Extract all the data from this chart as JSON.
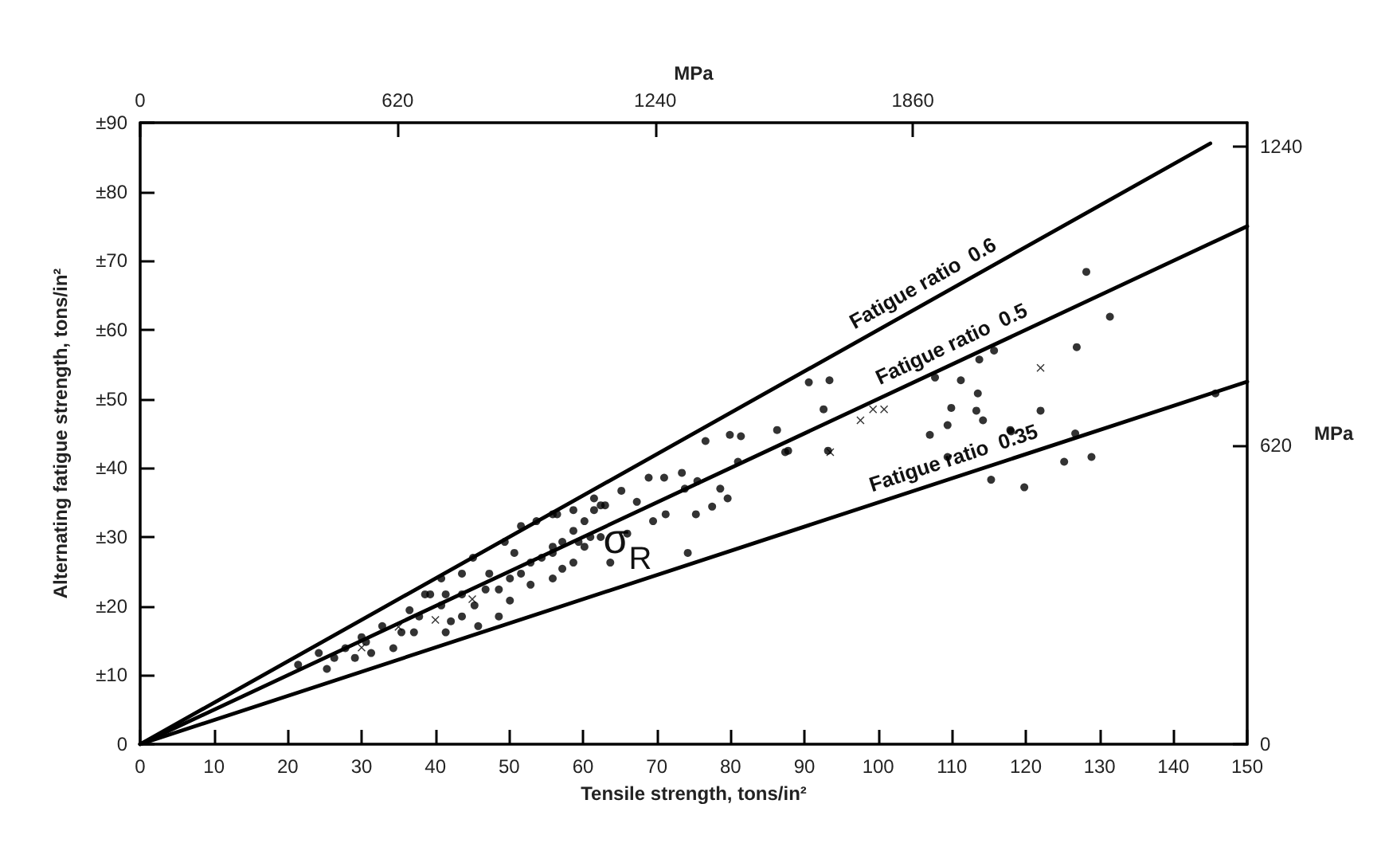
{
  "chart_data": {
    "type": "scatter",
    "xlabel": "Tensile strength, tons/in²",
    "ylabel": "Alternating fatigue strength, tons/in²",
    "x2label": "MPa",
    "y2label": "MPa",
    "xlim": [
      0,
      150
    ],
    "xticks": [
      0,
      10,
      20,
      30,
      40,
      50,
      60,
      70,
      80,
      90,
      100,
      110,
      120,
      130,
      140,
      150
    ],
    "ylim": [
      0,
      90
    ],
    "yticks": [
      0,
      {
        "value": 10,
        "label": "±10"
      },
      {
        "value": 20,
        "label": "±20"
      },
      {
        "value": 30,
        "label": "±30"
      },
      {
        "value": 40,
        "label": "±40"
      },
      {
        "value": 50,
        "label": "±50"
      },
      {
        "value": 60,
        "label": "±60"
      },
      {
        "value": 70,
        "label": "±70"
      },
      {
        "value": 80,
        "label": "±80"
      },
      {
        "value": 90,
        "label": "±90"
      }
    ],
    "x2lim": [
      0,
      2665
    ],
    "x2ticks": [
      0,
      620,
      1240,
      1860
    ],
    "y2lim": [
      0,
      1290
    ],
    "y2ticks": [
      0,
      620,
      1240
    ],
    "grid": false,
    "legend": false,
    "annotations": [
      "σ$_{R}$"
    ],
    "series": [
      {
        "type": "line",
        "name": "Fatigue ratio  0.6",
        "color": "#000000",
        "marker": "none",
        "x": [
          0,
          145
        ],
        "values": [
          0,
          87
        ]
      },
      {
        "type": "line",
        "name": "Fatigue ratio  0.5",
        "color": "#000000",
        "marker": "none",
        "x": [
          0,
          150
        ],
        "values": [
          0,
          75
        ]
      },
      {
        "type": "line",
        "name": "Fatigue ratio  0.35",
        "color": "#000000",
        "marker": "none",
        "x": [
          0,
          150
        ],
        "values": [
          0,
          52.5
        ]
      },
      {
        "color": "#000000",
        "marker": "circle",
        "x": [
          21.4,
          25.3,
          26.3,
          29.1,
          30.6,
          31.3,
          34.3,
          35.4,
          37.1,
          37.8,
          39.3,
          40.8,
          41.4,
          42.1,
          43.6,
          45.3,
          46.8,
          48.6,
          50.1,
          51.6,
          52.9,
          54.4,
          55.9,
          57.2,
          58.7,
          60.2,
          61.5,
          49.4,
          51.6,
          53.7,
          55.9,
          45.1,
          43.6,
          40.8,
          38.6,
          36.5,
          32.8,
          30,
          27.8,
          24.2,
          43.6,
          47.3,
          50.1,
          48.6,
          45.8,
          52.9,
          55.9,
          58.7,
          60.2,
          57.2,
          50.7,
          62.4,
          41.4,
          56.5,
          58.7,
          61.5,
          63,
          55.9,
          59.4,
          63.7,
          61,
          66,
          65.2,
          62.4,
          67.3,
          68.9,
          69.5,
          71.2,
          71,
          73.4,
          73.8,
          75.5,
          75.3,
          77.5,
          78.6,
          79.6,
          74.2,
          76.6,
          79.9,
          81.4,
          81,
          87.8,
          93.2,
          86.3,
          87.4,
          92.6,
          90.6,
          93.4,
          107.7,
          111.2,
          113.7,
          115.7,
          113.5,
          109.9,
          113.3,
          114.2,
          109.4,
          107,
          109.4,
          115.3,
          119.8,
          117.9,
          128.2,
          131.4,
          126.9,
          122,
          118,
          126.7,
          125.2,
          128.9,
          145.7
        ],
        "values": [
          11.5,
          10.9,
          12.5,
          12.5,
          14.8,
          13.2,
          13.9,
          16.2,
          16.2,
          18.5,
          21.7,
          20.1,
          21.7,
          17.8,
          18.5,
          20.1,
          22.4,
          22.4,
          24,
          24.7,
          26.3,
          27,
          28.6,
          29.3,
          30.9,
          32.3,
          33.9,
          29.3,
          31.6,
          32.3,
          33.3,
          27,
          24.7,
          24,
          21.7,
          19.4,
          17.1,
          15.5,
          13.9,
          13.2,
          21.7,
          24.7,
          20.8,
          18.5,
          17.1,
          23.1,
          24,
          26.3,
          28.6,
          25.4,
          27.7,
          30,
          16.2,
          33.3,
          33.9,
          35.6,
          34.6,
          27.7,
          29.3,
          26.3,
          30,
          30.5,
          36.7,
          34.6,
          35.1,
          38.6,
          32.3,
          33.3,
          38.6,
          39.3,
          37,
          38.1,
          33.3,
          34.4,
          37,
          35.6,
          27.7,
          43.9,
          44.8,
          44.6,
          40.9,
          42.5,
          42.5,
          45.5,
          42.3,
          48.5,
          52.4,
          52.7,
          53.1,
          52.7,
          55.7,
          57,
          50.8,
          48.7,
          48.3,
          46.9,
          46.2,
          44.8,
          41.6,
          38.3,
          37.2,
          45.5,
          68.4,
          61.9,
          57.5,
          48.3,
          45.3,
          45,
          40.9,
          41.6,
          50.8
        ]
      },
      {
        "color": "#000000",
        "marker": "cross",
        "x": [
          30,
          35,
          40,
          45,
          93.5,
          97.6,
          99.3,
          100.8,
          122
        ],
        "values": [
          14,
          17,
          18,
          21,
          42.3,
          46.9,
          48.5,
          48.5,
          54.5
        ]
      }
    ]
  }
}
